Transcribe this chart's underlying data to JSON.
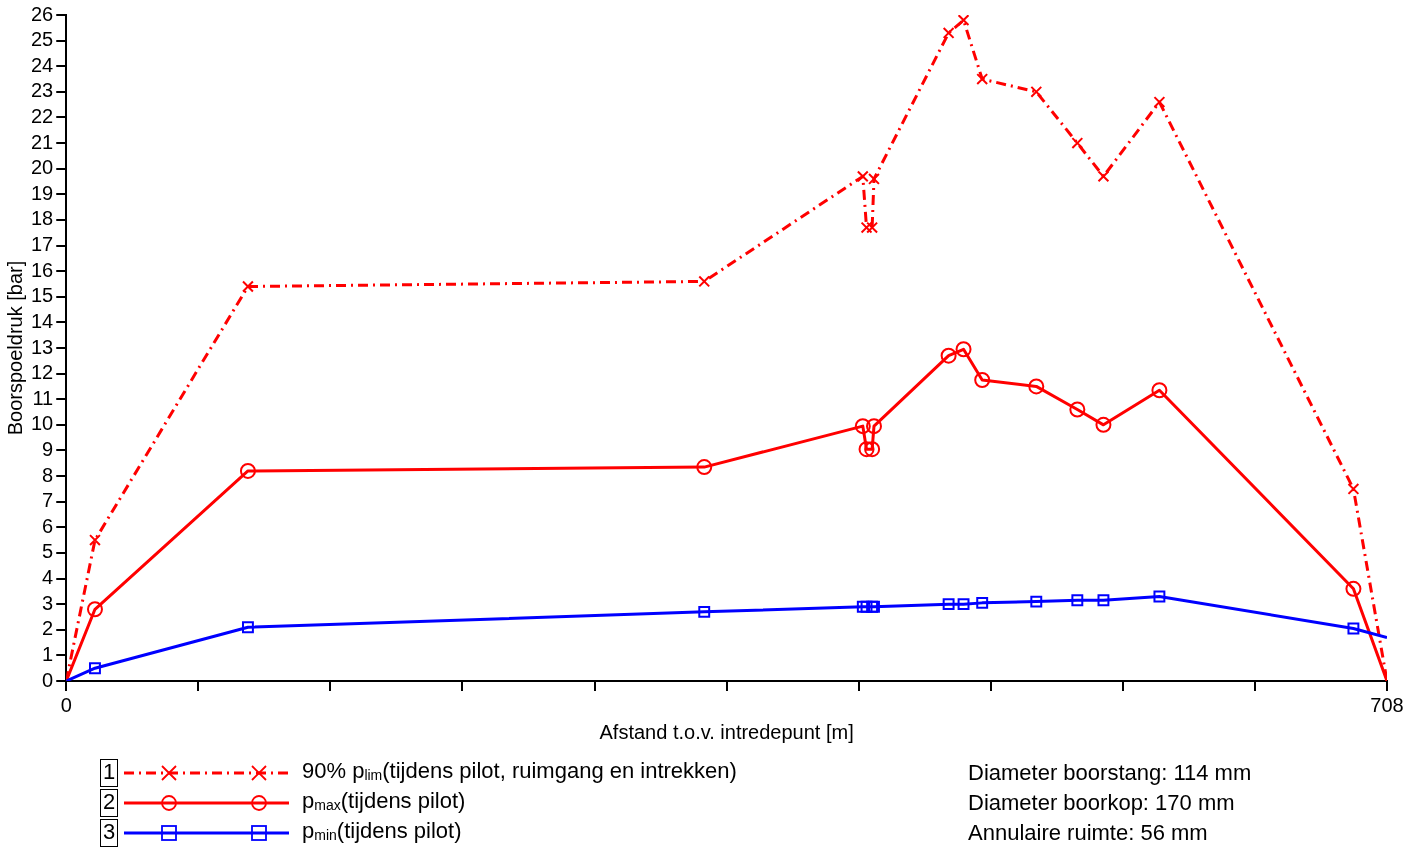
{
  "chart_data": {
    "type": "line",
    "xlabel": "Afstand t.o.v. intredepunt [m]",
    "ylabel": "Boorspoeldruk [bar]",
    "xlim": [
      0,
      708
    ],
    "xticks": [
      0,
      {
        "value": 70.8,
        "label": null
      },
      {
        "value": 141.6,
        "label": null
      },
      {
        "value": 212.4,
        "label": null
      },
      {
        "value": 283.2,
        "label": null
      },
      {
        "value": 354,
        "label": null
      },
      {
        "value": 424.8,
        "label": null
      },
      {
        "value": 495.6,
        "label": null
      },
      {
        "value": 566.4,
        "label": null
      },
      {
        "value": 637.2,
        "label": null
      },
      708
    ],
    "ylim": [
      0,
      26
    ],
    "yticks": [
      0,
      1,
      2,
      3,
      4,
      5,
      6,
      7,
      8,
      9,
      10,
      11,
      12,
      13,
      14,
      15,
      16,
      17,
      18,
      19,
      20,
      21,
      22,
      23,
      24,
      25,
      26
    ],
    "grid": false,
    "legend": "bottom",
    "series": [
      {
        "name": "90% p$_{lim}$(tijdens pilot, ruimgang en intrekken)",
        "color": "#ff0000",
        "marker": "cross",
        "line_style": "dashed",
        "x": [
          0,
          15.4,
          97.4,
          342,
          427,
          429,
          432,
          433,
          473,
          481,
          491,
          520,
          542,
          556,
          586,
          690,
          708
        ],
        "values": [
          0,
          5.5,
          15.4,
          15.6,
          19.7,
          17.7,
          17.7,
          19.6,
          25.3,
          25.8,
          23.5,
          23.0,
          21.0,
          19.7,
          22.6,
          7.5,
          0
        ]
      },
      {
        "name": "p$_{max}$(tijdens pilot)",
        "color": "#ff0000",
        "marker": "circle",
        "line_style": "solid",
        "x": [
          0,
          15.4,
          97.4,
          342,
          427,
          429,
          432,
          433,
          473,
          481,
          491,
          520,
          542,
          556,
          586,
          690,
          708
        ],
        "values": [
          0,
          2.8,
          8.2,
          8.35,
          9.95,
          9.05,
          9.05,
          9.95,
          12.7,
          12.95,
          11.75,
          11.5,
          10.6,
          10.0,
          11.35,
          3.6,
          0
        ]
      },
      {
        "name": "p$_{min}$(tijdens pilot)",
        "color": "#0000ff",
        "marker": "square",
        "line_style": "solid",
        "x": [
          0,
          15.4,
          97.4,
          342,
          427,
          429,
          432,
          433,
          473,
          481,
          491,
          520,
          542,
          556,
          586,
          690,
          708
        ],
        "values": [
          0,
          0.5,
          2.1,
          2.7,
          2.9,
          2.9,
          2.9,
          2.9,
          3.0,
          3.0,
          3.05,
          3.1,
          3.15,
          3.15,
          3.3,
          2.05,
          1.7
        ]
      }
    ],
    "annotations": [
      "1",
      "2",
      "3",
      "Diameter boorstang: 114 mm",
      "Diameter boorkop: 170 mm",
      "Annulaire ruimte: 56 mm"
    ]
  }
}
